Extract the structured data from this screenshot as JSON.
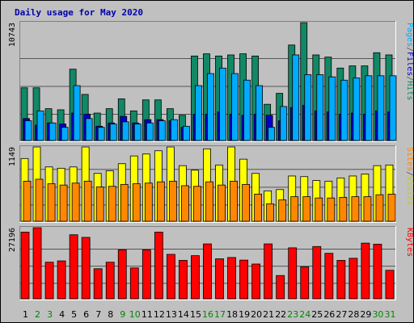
{
  "chart_data": {
    "type": "bar",
    "title": "Daily usage for May 2020",
    "categories": [
      "1",
      "2",
      "3",
      "4",
      "5",
      "6",
      "7",
      "8",
      "9",
      "10",
      "11",
      "12",
      "13",
      "14",
      "15",
      "16",
      "17",
      "18",
      "19",
      "20",
      "21",
      "22",
      "23",
      "24",
      "25",
      "26",
      "27",
      "28",
      "29",
      "30",
      "31"
    ],
    "weekend_days": [
      "2",
      "3",
      "9",
      "10",
      "16",
      "17",
      "23",
      "24",
      "30",
      "31"
    ],
    "panels": [
      {
        "max_label": "10743",
        "ylim": [
          0,
          10743
        ],
        "side_labels": [
          {
            "text": "Pages",
            "color": "#00aaff"
          },
          {
            "text": "/",
            "color": "#555555"
          },
          {
            "text": "Files",
            "color": "#0000cc"
          },
          {
            "text": "/",
            "color": "#555555"
          },
          {
            "text": "Hits",
            "color": "#118866"
          }
        ],
        "series": [
          {
            "name": "Hits",
            "color": "#118866",
            "values": [
              4800,
              4800,
              2900,
              2800,
              6500,
              4200,
              2500,
              2900,
              3800,
              2700,
              3700,
              3700,
              2900,
              2300,
              7700,
              7900,
              7700,
              7800,
              7900,
              7700,
              3300,
              4300,
              8700,
              10743,
              7800,
              7600,
              6600,
              6800,
              6800,
              8000,
              7800
            ]
          },
          {
            "name": "Files",
            "color": "#0000cc",
            "values": [
              2000,
              1400,
              1600,
              1500,
              2500,
              2400,
              1300,
              1600,
              2200,
              1600,
              1900,
              1900,
              1800,
              1200,
              2400,
              2400,
              2600,
              2400,
              2300,
              2400,
              2300,
              1800,
              3000,
              3200,
              2700,
              2600,
              2400,
              2500,
              2400,
              2700,
              2600
            ]
          },
          {
            "name": "Pages",
            "color": "#00aaff",
            "values": [
              1800,
              2700,
              1600,
              1200,
              5000,
              2000,
              1200,
              1500,
              1700,
              1500,
              1600,
              1800,
              1900,
              1300,
              5000,
              6100,
              6600,
              6100,
              5500,
              5000,
              1200,
              3100,
              7800,
              6000,
              6000,
              5800,
              5500,
              5700,
              5900,
              5900,
              5900
            ]
          }
        ]
      },
      {
        "max_label": "1149",
        "ylim": [
          0,
          1149
        ],
        "side_labels": [
          {
            "text": "Sites",
            "color": "#ff8800"
          },
          {
            "text": "/",
            "color": "#555555"
          },
          {
            "text": "Visits",
            "color": "#cccc00"
          }
        ],
        "series": [
          {
            "name": "Visits",
            "color": "#ffff00",
            "values": [
              970,
              1149,
              840,
              820,
              840,
              1149,
              740,
              780,
              890,
              1010,
              1040,
              1090,
              1149,
              860,
              790,
              1120,
              870,
              1149,
              960,
              740,
              470,
              490,
              700,
              690,
              630,
              620,
              670,
              700,
              730,
              860,
              870
            ]
          },
          {
            "name": "Sites",
            "color": "#ff8800",
            "values": [
              620,
              650,
              580,
              560,
              590,
              620,
              530,
              540,
              570,
              580,
              590,
              610,
              620,
              550,
              540,
              610,
              560,
              620,
              570,
              420,
              270,
              330,
              380,
              380,
              360,
              360,
              370,
              380,
              380,
              410,
              420
            ]
          }
        ]
      },
      {
        "max_label": "27196",
        "ylim": [
          0,
          27196
        ],
        "side_labels": [
          {
            "text": "KBytes",
            "color": "#ff0000"
          }
        ],
        "series": [
          {
            "name": "KBytes",
            "color": "#ff0000",
            "values": [
              25500,
              27196,
              14000,
              14500,
              24500,
              23500,
              11500,
              14000,
              18700,
              11800,
              18700,
              25500,
              17000,
              14700,
              16500,
              21000,
              15300,
              15800,
              14800,
              13300,
              21000,
              8900,
              19500,
              12200,
              20000,
              17400,
              14700,
              15500,
              21300,
              20900,
              10900
            ]
          }
        ]
      }
    ]
  }
}
